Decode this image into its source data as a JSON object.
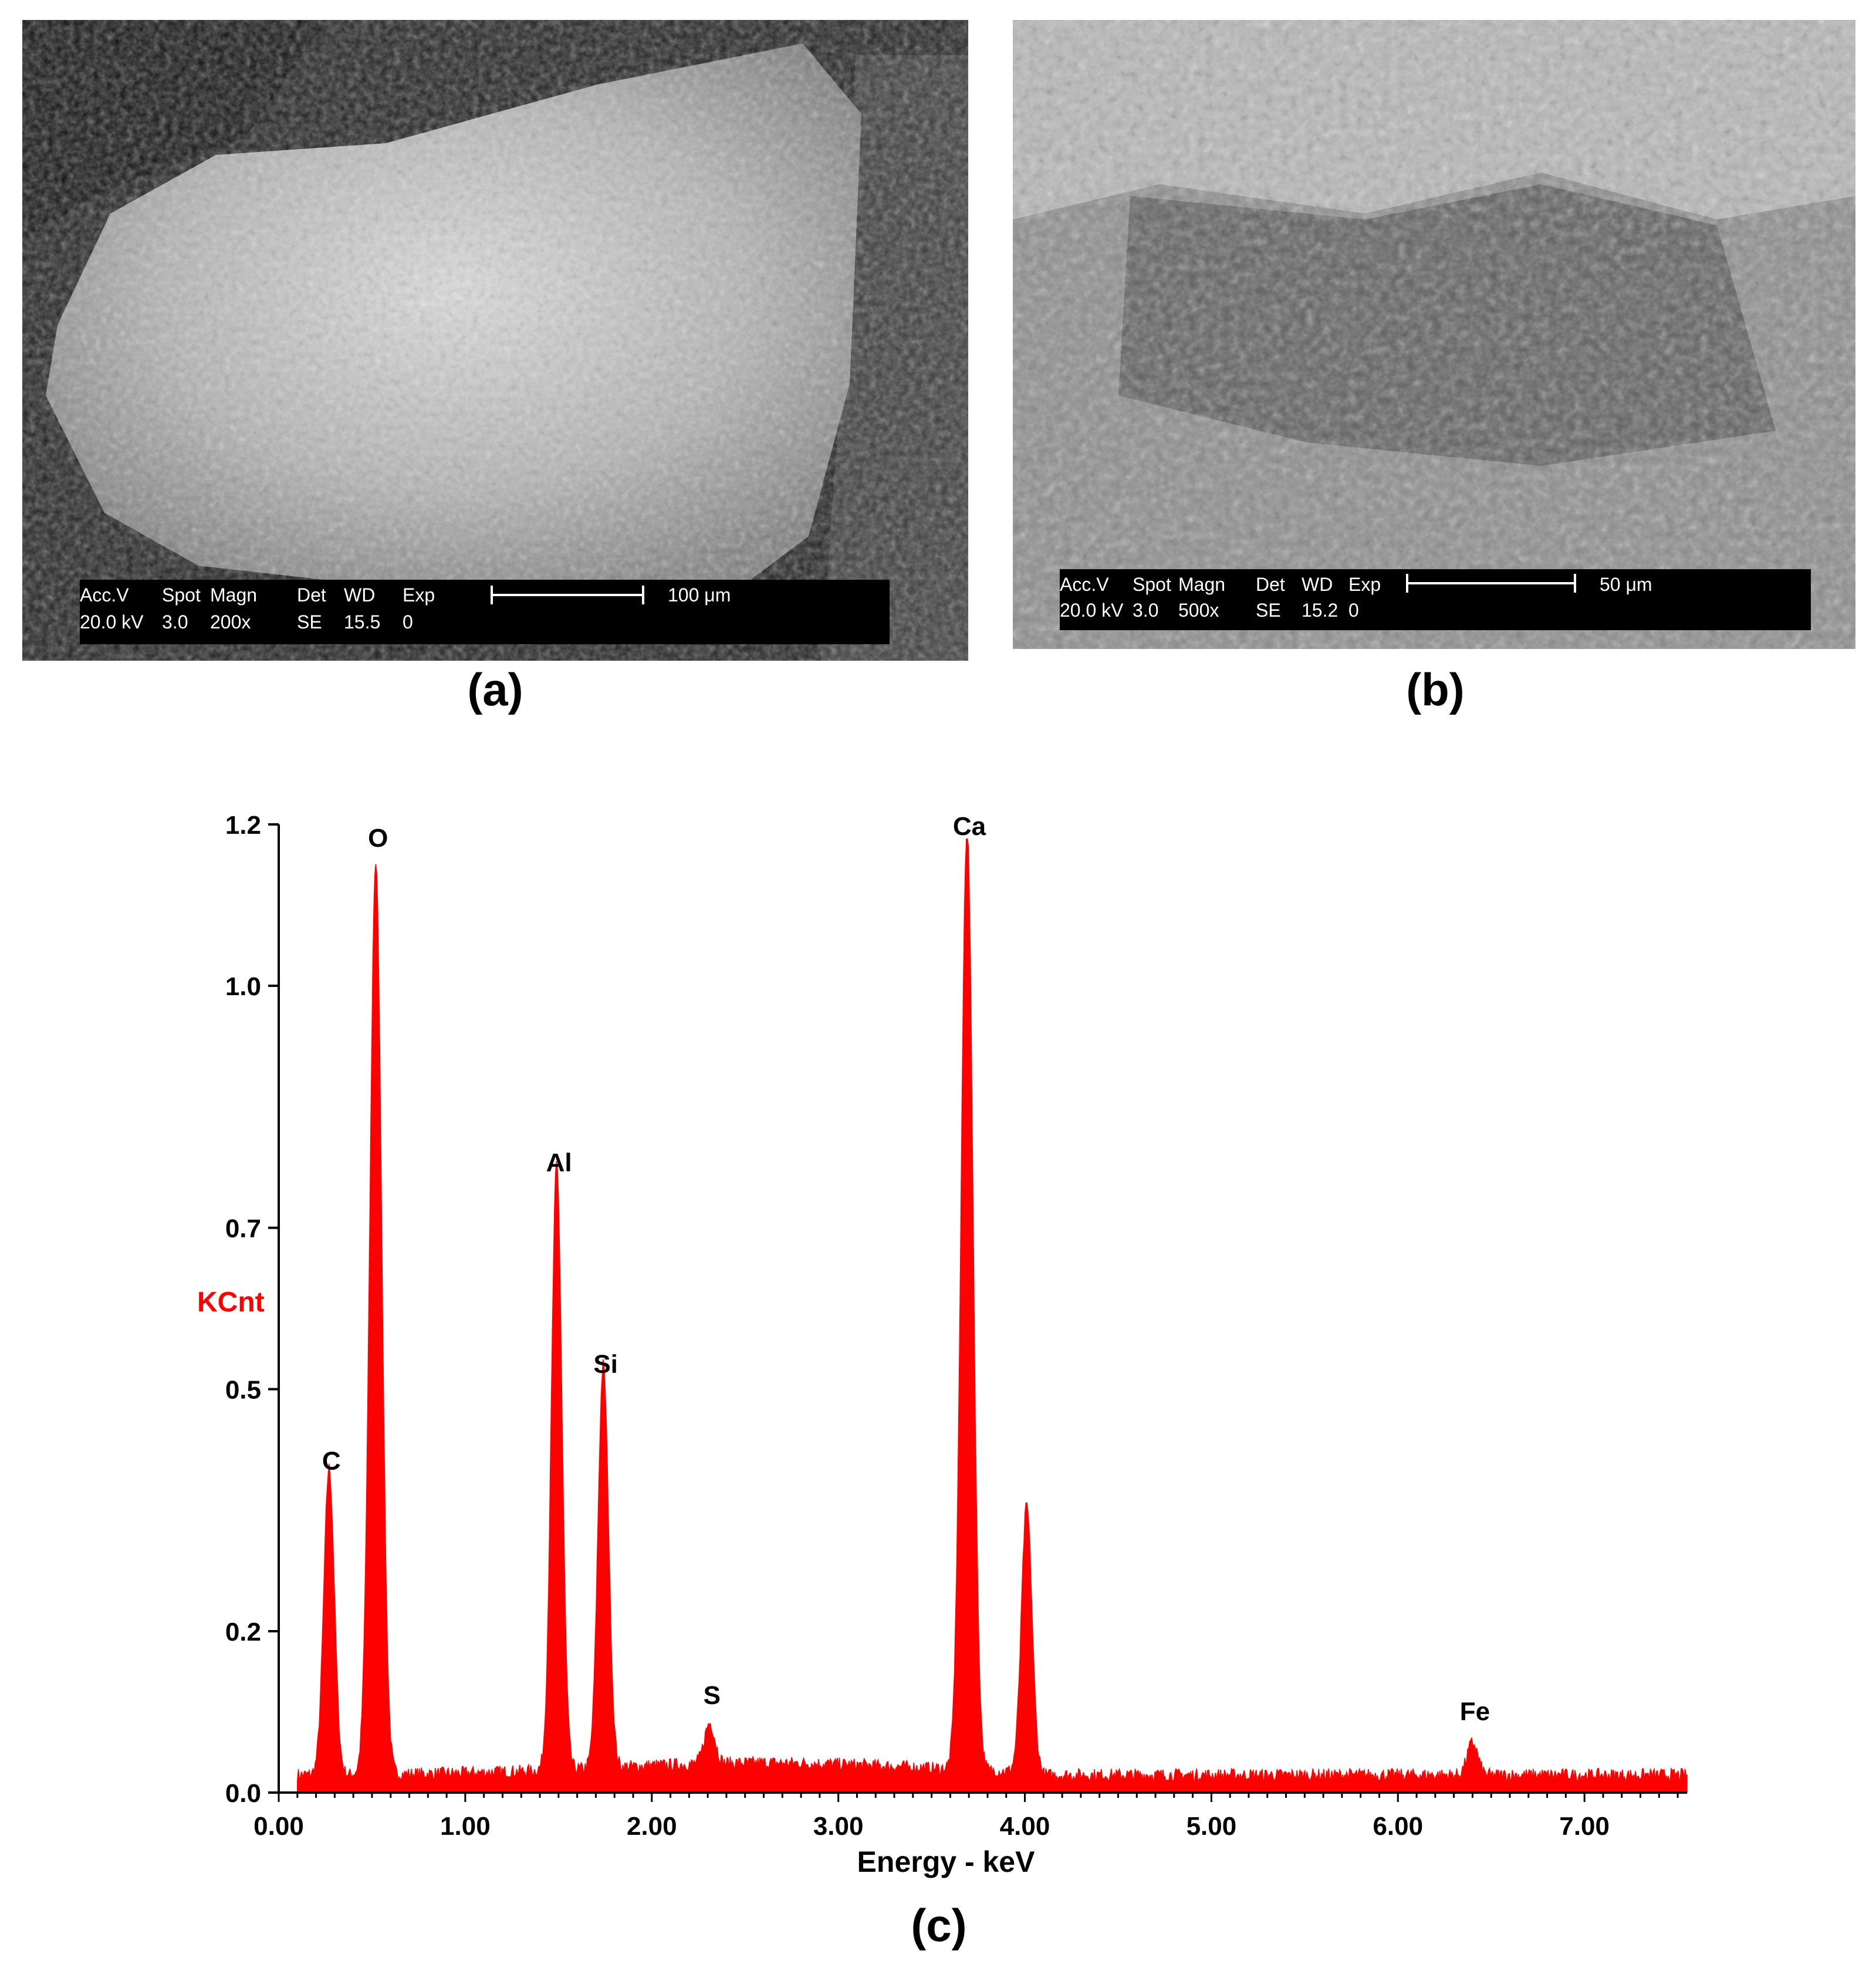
{
  "panels": {
    "a": {
      "label": "(a)",
      "info_header": [
        "Acc.V",
        "Spot",
        "Magn",
        "Det",
        "WD",
        "Exp"
      ],
      "info_values": [
        "20.0 kV",
        "3.0",
        "200x",
        "SE",
        "15.5",
        "0"
      ],
      "scale_label": "100 μm"
    },
    "b": {
      "label": "(b)",
      "info_header": [
        "Acc.V",
        "Spot",
        "Magn",
        "Det",
        "WD",
        "Exp"
      ],
      "info_values": [
        "20.0 kV",
        "3.0",
        "500x",
        "SE",
        "15.2",
        "0"
      ],
      "scale_label": "50 μm"
    },
    "c": {
      "label": "(c)"
    }
  },
  "colors": {
    "spectrum": "#ff0000",
    "axis": "#000000",
    "ylabel": "#ff0000"
  },
  "chart_data": {
    "type": "area",
    "title": "",
    "xlabel": "Energy - keV",
    "ylabel": "KCnt",
    "xlim": [
      0,
      7.55
    ],
    "ylim": [
      0,
      1.2
    ],
    "x_ticks": [
      "0.00",
      "1.00",
      "2.00",
      "3.00",
      "4.00",
      "5.00",
      "6.00",
      "7.00"
    ],
    "y_ticks": [
      "0.0",
      "0.2",
      "0.5",
      "0.7",
      "1.0",
      "1.2"
    ],
    "background": 0.02,
    "peaks": [
      {
        "name": "C",
        "x": 0.27,
        "height": 0.38
      },
      {
        "name": "O",
        "x": 0.52,
        "height": 1.13
      },
      {
        "name": "Al",
        "x": 1.49,
        "height": 0.75
      },
      {
        "name": "Si",
        "x": 1.74,
        "height": 0.5
      },
      {
        "name": "S",
        "x": 2.31,
        "height": 0.05
      },
      {
        "name": "Ca",
        "x": 3.69,
        "height": 1.17
      },
      {
        "name": "",
        "x": 4.01,
        "height": 0.33
      },
      {
        "name": "Fe",
        "x": 6.4,
        "height": 0.04
      }
    ]
  }
}
